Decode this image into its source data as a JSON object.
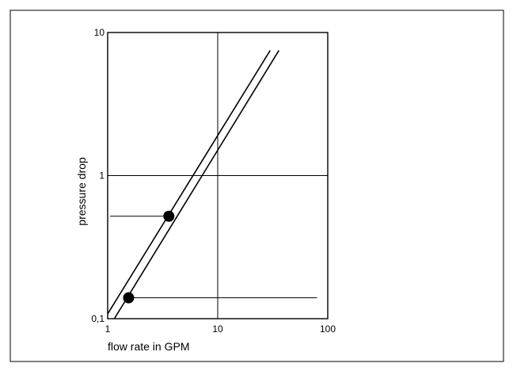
{
  "chart_data": {
    "type": "line",
    "title": "",
    "xlabel": "flow rate in GPM",
    "ylabel": "pressure drop",
    "x_scale": "log",
    "y_scale": "log",
    "xlim": [
      1,
      100
    ],
    "ylim": [
      0.1,
      10
    ],
    "x_ticks": [
      {
        "value": 1,
        "label": "1"
      },
      {
        "value": 10,
        "label": "10"
      },
      {
        "value": 100,
        "label": "100"
      }
    ],
    "y_ticks": [
      {
        "value": 0.1,
        "label": "0,1"
      },
      {
        "value": 1,
        "label": "1"
      },
      {
        "value": 10,
        "label": "10"
      }
    ],
    "grid": true,
    "series": [
      {
        "x": [
          0.94,
          30
        ],
        "y": [
          0.1,
          7.5
        ]
      },
      {
        "x": [
          1.15,
          36
        ],
        "y": [
          0.1,
          7.5
        ]
      }
    ],
    "markers": [
      {
        "x": 3.6,
        "y": 0.52
      },
      {
        "x": 1.55,
        "y": 0.14
      }
    ],
    "reference_lines": [
      {
        "y": 0.52,
        "x_from": 1.05,
        "x_to": 3.6
      },
      {
        "y": 0.14,
        "x_from": 1.55,
        "x_to": 80
      }
    ]
  }
}
